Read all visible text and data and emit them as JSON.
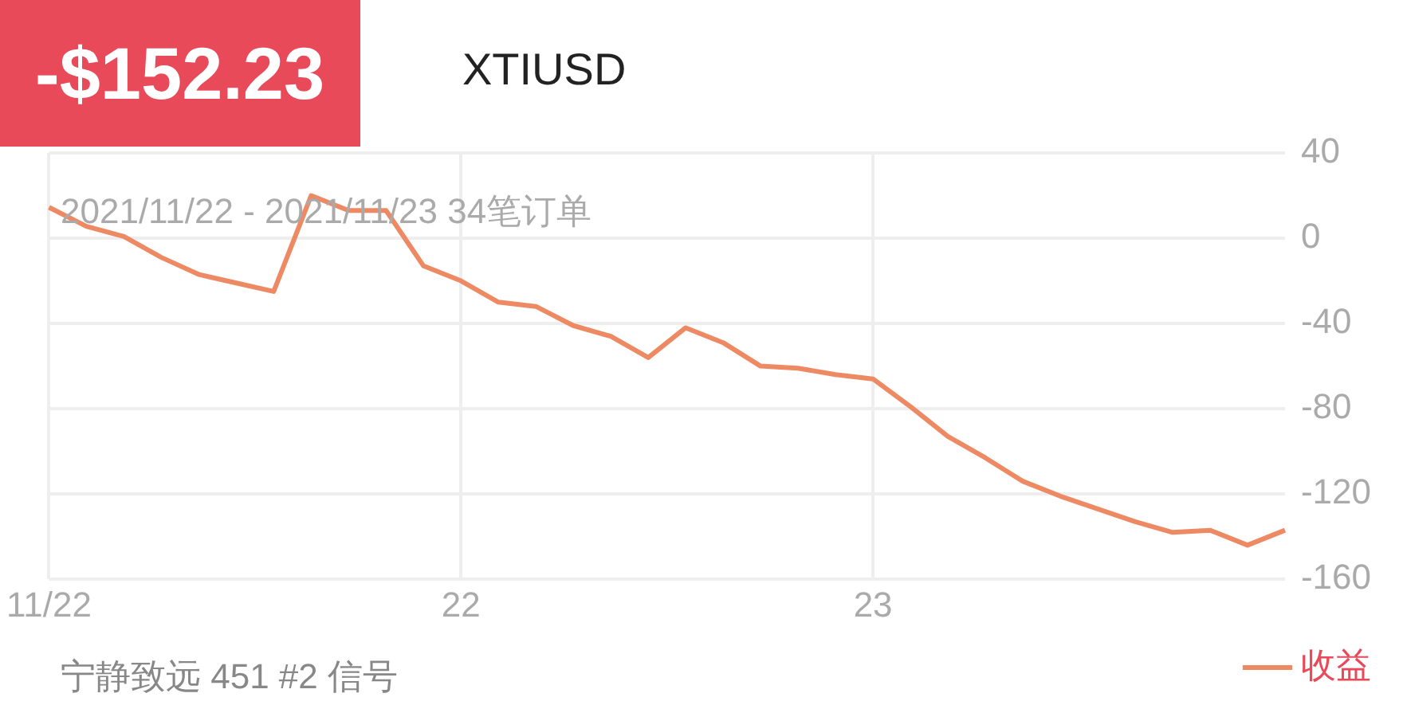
{
  "chart_data": {
    "type": "line",
    "title": "-$152.23",
    "subtitle": "XTIUSD",
    "annotations": [
      "2021/11/22 - 2021/11/23 34笔订单",
      "宁静致远 451 #2 信号"
    ],
    "categories": [
      "11/22",
      null,
      null,
      null,
      null,
      null,
      null,
      null,
      null,
      null,
      null,
      "22",
      null,
      null,
      null,
      null,
      null,
      null,
      null,
      null,
      null,
      null,
      "23",
      null,
      null,
      null,
      null,
      null,
      null,
      null,
      null,
      null,
      null,
      null
    ],
    "series": [
      {
        "name": "收益",
        "color": "#ee8a63",
        "values": [
          14.5,
          5.6,
          0.8,
          -9,
          -17,
          -21,
          -25,
          20,
          13,
          13,
          -13,
          -20,
          -30,
          -32,
          -41,
          -46,
          -56,
          -42,
          -49,
          -60,
          -61,
          -64,
          -66,
          -79,
          -93,
          -103,
          -114,
          -121,
          -127,
          -133,
          -138,
          -137,
          -144,
          -137
        ]
      }
    ],
    "ylim": [
      -160,
      40
    ],
    "yticks": [
      -160,
      -120,
      -80,
      -40,
      0,
      40
    ],
    "grid": true,
    "legend": "bottom right",
    "marker": "none",
    "line_style": "solid"
  }
}
